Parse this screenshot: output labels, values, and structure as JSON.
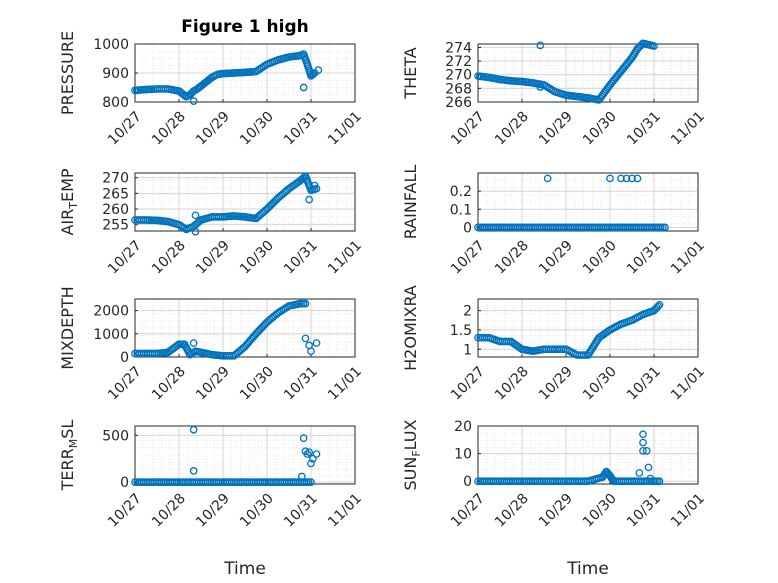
{
  "figure": {
    "title": "Figure 1 high",
    "xlabel": "Time",
    "marker_color": "#0072BD"
  },
  "chart_data": [
    {
      "type": "scatter",
      "ylabel": "PRESSURE",
      "xlim": [
        "10/27",
        "11/01"
      ],
      "ylim": [
        800,
        1000
      ],
      "yticks": [
        "800",
        "900",
        "1000"
      ],
      "grid": true,
      "x": [
        "10/27 00:00",
        "10/27 06:00",
        "10/27 12:00",
        "10/27 18:00",
        "10/28 00:00",
        "10/28 04:00",
        "10/28 06:00",
        "10/28 08:00",
        "10/28 10:00",
        "10/28 12:00",
        "10/28 15:00",
        "10/28 18:00",
        "10/28 21:00",
        "10/29 00:00",
        "10/29 06:00",
        "10/29 12:00",
        "10/29 18:00",
        "10/30 00:00",
        "10/30 06:00",
        "10/30 12:00",
        "10/30 18:00",
        "10/30 20:00",
        "10/30 22:00",
        "10/31 00:00",
        "10/31 02:00"
      ],
      "y": [
        840,
        843,
        845,
        845,
        838,
        818,
        825,
        838,
        845,
        855,
        870,
        885,
        895,
        898,
        900,
        902,
        905,
        930,
        945,
        955,
        960,
        965,
        930,
        890,
        900
      ],
      "outliers": [
        {
          "x": "10/28 08:00",
          "y": 803
        },
        {
          "x": "10/30 20:00",
          "y": 850
        },
        {
          "x": "10/31 04:00",
          "y": 910
        }
      ]
    },
    {
      "type": "scatter",
      "ylabel": "THETA",
      "xlim": [
        "10/27",
        "11/01"
      ],
      "ylim": [
        266,
        274.5
      ],
      "yticks": [
        "266",
        "268",
        "270",
        "272",
        "274"
      ],
      "grid": true,
      "x": [
        "10/27 00:00",
        "10/27 06:00",
        "10/27 12:00",
        "10/27 18:00",
        "10/28 00:00",
        "10/28 06:00",
        "10/28 12:00",
        "10/28 18:00",
        "10/29 00:00",
        "10/29 06:00",
        "10/29 12:00",
        "10/29 18:00",
        "10/30 00:00",
        "10/30 06:00",
        "10/30 12:00",
        "10/30 15:00",
        "10/30 18:00",
        "10/30 21:00",
        "10/31 00:00"
      ],
      "y": [
        269.8,
        269.6,
        269.3,
        269.1,
        269.0,
        268.8,
        268.5,
        267.5,
        267.0,
        266.8,
        266.6,
        266.3,
        268.5,
        270.5,
        272.5,
        273.8,
        274.6,
        274.4,
        274.2
      ],
      "outliers": [
        {
          "x": "10/28 10:00",
          "y": 274.3
        },
        {
          "x": "10/28 10:00",
          "y": 268.2
        }
      ]
    },
    {
      "type": "scatter",
      "ylabel": "AIR",
      "ylabel_sub": "T",
      "ylabel_suffix": "EMP",
      "xlim": [
        "10/27",
        "11/01"
      ],
      "ylim": [
        253,
        271.5
      ],
      "yticks": [
        "255",
        "260",
        "265",
        "270"
      ],
      "grid": true,
      "x": [
        "10/27 00:00",
        "10/27 06:00",
        "10/27 12:00",
        "10/27 18:00",
        "10/28 00:00",
        "10/28 04:00",
        "10/28 08:00",
        "10/28 12:00",
        "10/28 18:00",
        "10/29 00:00",
        "10/29 06:00",
        "10/29 12:00",
        "10/29 18:00",
        "10/30 00:00",
        "10/30 06:00",
        "10/30 12:00",
        "10/30 18:00",
        "10/30 21:00",
        "10/31 00:00",
        "10/31 03:00"
      ],
      "y": [
        256.5,
        256.5,
        256.4,
        256.0,
        255.0,
        253.5,
        254.5,
        256.5,
        257.5,
        257.5,
        257.8,
        257.5,
        257.0,
        260.0,
        263.5,
        266.5,
        269.0,
        270.5,
        266.0,
        266.5
      ],
      "outliers": [
        {
          "x": "10/28 09:00",
          "y": 252.8
        },
        {
          "x": "10/28 09:00",
          "y": 258.0
        },
        {
          "x": "10/30 23:00",
          "y": 263.0
        },
        {
          "x": "10/31 02:00",
          "y": 267.5
        }
      ]
    },
    {
      "type": "scatter",
      "ylabel": "RAINFALL",
      "xlim": [
        "10/27",
        "11/01"
      ],
      "ylim": [
        -0.02,
        0.3
      ],
      "yticks": [
        "0",
        "0.1",
        "0.2"
      ],
      "grid": true,
      "x": [
        "10/27 00:00",
        "10/27 12:00",
        "10/28 00:00",
        "10/28 12:00",
        "10/29 00:00",
        "10/29 12:00",
        "10/30 00:00",
        "10/30 06:00",
        "10/30 12:00",
        "10/30 18:00",
        "10/31 00:00",
        "10/31 06:00"
      ],
      "y": [
        0,
        0,
        0,
        0,
        0,
        0,
        0,
        0,
        0,
        0,
        0,
        0
      ],
      "outliers": [
        {
          "x": "10/28 14:00",
          "y": 0.27
        },
        {
          "x": "10/30 00:00",
          "y": 0.27
        },
        {
          "x": "10/30 06:00",
          "y": 0.27
        },
        {
          "x": "10/30 09:00",
          "y": 0.27
        },
        {
          "x": "10/30 12:00",
          "y": 0.27
        },
        {
          "x": "10/30 15:00",
          "y": 0.27
        },
        {
          "x": "10/30 06:00",
          "y": 0
        },
        {
          "x": "10/30 12:00",
          "y": 0
        }
      ]
    },
    {
      "type": "scatter",
      "ylabel": "MIXDEPTH",
      "xlim": [
        "10/27",
        "11/01"
      ],
      "ylim": [
        0,
        2500
      ],
      "yticks": [
        "0",
        "1000",
        "2000"
      ],
      "grid": true,
      "x": [
        "10/27 00:00",
        "10/27 06:00",
        "10/27 12:00",
        "10/27 18:00",
        "10/28 00:00",
        "10/28 03:00",
        "10/28 06:00",
        "10/28 09:00",
        "10/28 12:00",
        "10/28 18:00",
        "10/29 00:00",
        "10/29 06:00",
        "10/29 12:00",
        "10/29 18:00",
        "10/30 00:00",
        "10/30 06:00",
        "10/30 12:00",
        "10/30 18:00",
        "10/30 21:00"
      ],
      "y": [
        150,
        150,
        150,
        200,
        550,
        550,
        100,
        250,
        200,
        100,
        50,
        50,
        450,
        1000,
        1500,
        1900,
        2200,
        2300,
        2300
      ],
      "outliers": [
        {
          "x": "10/28 08:00",
          "y": 600
        },
        {
          "x": "10/30 21:00",
          "y": 800
        },
        {
          "x": "10/30 23:00",
          "y": 500
        },
        {
          "x": "10/31 00:00",
          "y": 250
        },
        {
          "x": "10/31 03:00",
          "y": 600
        }
      ]
    },
    {
      "type": "scatter",
      "ylabel": "H2OMIXRA",
      "xlim": [
        "10/27",
        "11/01"
      ],
      "ylim": [
        0.8,
        2.3
      ],
      "yticks": [
        "1",
        "1.5",
        "2"
      ],
      "grid": true,
      "x": [
        "10/27 00:00",
        "10/27 06:00",
        "10/27 12:00",
        "10/27 18:00",
        "10/28 00:00",
        "10/28 06:00",
        "10/28 12:00",
        "10/28 18:00",
        "10/29 00:00",
        "10/29 06:00",
        "10/29 12:00",
        "10/29 18:00",
        "10/30 00:00",
        "10/30 06:00",
        "10/30 12:00",
        "10/30 18:00",
        "10/31 00:00",
        "10/31 03:00"
      ],
      "y": [
        1.3,
        1.3,
        1.2,
        1.2,
        1.0,
        0.95,
        1.0,
        1.0,
        1.0,
        0.85,
        0.85,
        1.3,
        1.5,
        1.65,
        1.75,
        1.9,
        2.0,
        2.15
      ],
      "outliers": []
    },
    {
      "type": "scatter",
      "ylabel": "TERR",
      "ylabel_sub": "M",
      "ylabel_suffix": "SL",
      "xlim": [
        "10/27",
        "11/01"
      ],
      "ylim": [
        -20,
        600
      ],
      "yticks": [
        "0",
        "500"
      ],
      "grid": true,
      "x": [
        "10/27 00:00",
        "10/27 12:00",
        "10/28 00:00",
        "10/28 12:00",
        "10/29 00:00",
        "10/29 12:00",
        "10/30 00:00",
        "10/30 12:00",
        "10/30 18:00",
        "10/31 00:00"
      ],
      "y": [
        0,
        0,
        0,
        0,
        0,
        0,
        0,
        0,
        0,
        0
      ],
      "outliers": [
        {
          "x": "10/28 08:00",
          "y": 560
        },
        {
          "x": "10/28 08:00",
          "y": 120
        },
        {
          "x": "10/30 20:00",
          "y": 470
        },
        {
          "x": "10/30 21:00",
          "y": 330
        },
        {
          "x": "10/30 22:00",
          "y": 300
        },
        {
          "x": "10/30 23:00",
          "y": 320
        },
        {
          "x": "10/31 00:00",
          "y": 200
        },
        {
          "x": "10/31 01:00",
          "y": 250
        },
        {
          "x": "10/31 03:00",
          "y": 300
        },
        {
          "x": "10/30 19:00",
          "y": 60
        }
      ]
    },
    {
      "type": "scatter",
      "ylabel": "SUN",
      "ylabel_sub": "F",
      "ylabel_suffix": "LUX",
      "xlim": [
        "10/27",
        "11/01"
      ],
      "ylim": [
        -1,
        20
      ],
      "yticks": [
        "0",
        "10",
        "20"
      ],
      "grid": true,
      "x": [
        "10/27 00:00",
        "10/27 12:00",
        "10/28 00:00",
        "10/28 12:00",
        "10/29 00:00",
        "10/29 12:00",
        "10/29 20:00",
        "10/29 22:00",
        "10/30 00:00",
        "10/30 02:00",
        "10/30 04:00",
        "10/30 12:00",
        "10/31 00:00",
        "10/31 03:00"
      ],
      "y": [
        0,
        0,
        0,
        0,
        0,
        0,
        1.5,
        3.5,
        2,
        0,
        0,
        0,
        0,
        0
      ],
      "outliers": [
        {
          "x": "10/30 18:00",
          "y": 17
        },
        {
          "x": "10/30 18:00",
          "y": 14
        },
        {
          "x": "10/30 18:00",
          "y": 11
        },
        {
          "x": "10/30 20:00",
          "y": 11
        },
        {
          "x": "10/30 21:00",
          "y": 5
        },
        {
          "x": "10/30 16:00",
          "y": 3
        },
        {
          "x": "10/30 22:00",
          "y": 1
        }
      ]
    }
  ],
  "xticks": [
    "10/27",
    "10/28",
    "10/29",
    "10/30",
    "10/31",
    "11/01"
  ]
}
